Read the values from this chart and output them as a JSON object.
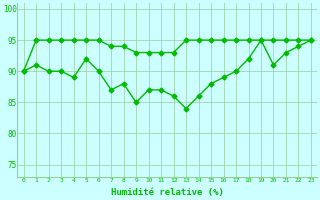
{
  "x": [
    0,
    1,
    2,
    3,
    4,
    5,
    6,
    7,
    8,
    9,
    10,
    11,
    12,
    13,
    14,
    15,
    16,
    17,
    18,
    19,
    20,
    21,
    22,
    23
  ],
  "line1": [
    90,
    95,
    95,
    95,
    95,
    95,
    95,
    94,
    94,
    93,
    93,
    93,
    93,
    95,
    95,
    95,
    95,
    95,
    95,
    95,
    95,
    95,
    95,
    95
  ],
  "line2": [
    90,
    91,
    90,
    90,
    89,
    92,
    90,
    87,
    88,
    85,
    87,
    87,
    86,
    84,
    86,
    88,
    89,
    90,
    92,
    95,
    91,
    93,
    94,
    95
  ],
  "line_color": "#00bb00",
  "bg_color": "#ccffff",
  "grid_color": "#99cc99",
  "xlabel": "Humidité relative (%)",
  "ylim": [
    73,
    101
  ],
  "yticks": [
    75,
    80,
    85,
    90,
    95,
    100
  ],
  "xlim": [
    -0.5,
    23.5
  ],
  "marker": "D",
  "markersize": 2.5,
  "linewidth": 1.0
}
